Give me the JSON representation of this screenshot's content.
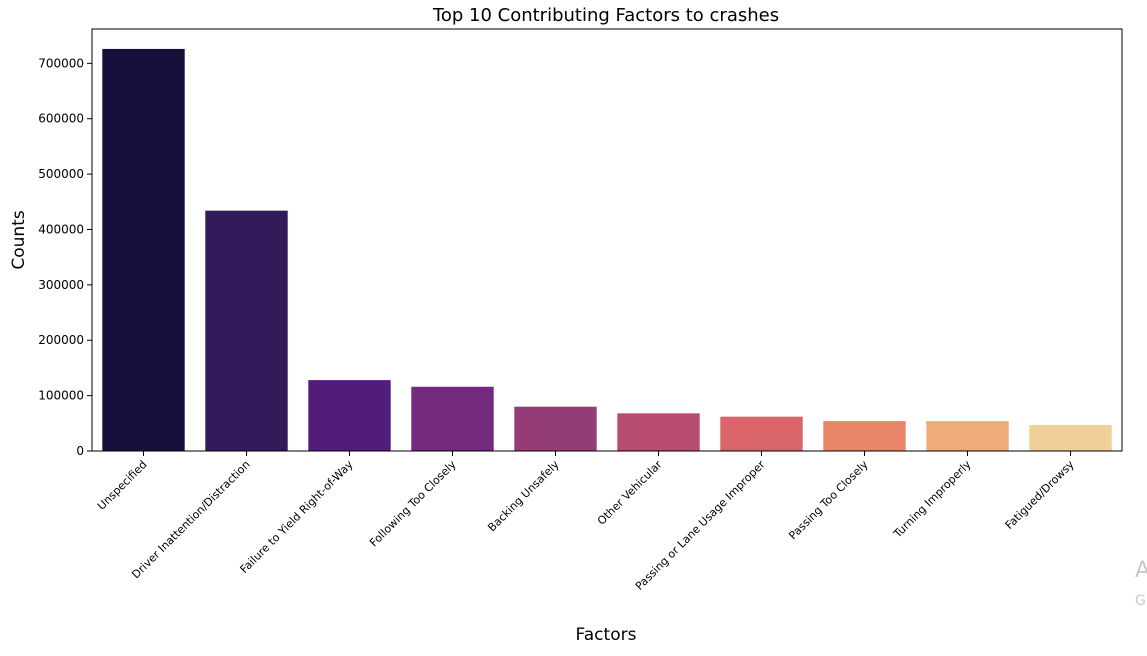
{
  "chart_data": {
    "type": "bar",
    "title": "Top 10 Contributing Factors to crashes",
    "xlabel": "Factors",
    "ylabel": "Counts",
    "categories": [
      "Unspecified",
      "Driver Inattention/Distraction",
      "Failure to Yield Right-of-Way",
      "Following Too Closely",
      "Backing Unsafely",
      "Other Vehicular",
      "Passing or Lane Usage Improper",
      "Passing Too Closely",
      "Turning Improperly",
      "Fatigued/Drowsy"
    ],
    "values": [
      726000,
      434000,
      128000,
      116000,
      80000,
      68000,
      62000,
      54000,
      54000,
      47000
    ],
    "colors": [
      "#180f3d",
      "#331a5b",
      "#521d78",
      "#732a7c",
      "#933c78",
      "#b94c71",
      "#d9656a",
      "#e9866a",
      "#eeac7c",
      "#f1cf98"
    ],
    "ylim": [
      0,
      762000
    ],
    "yticks": [
      0,
      100000,
      200000,
      300000,
      400000,
      500000,
      600000,
      700000
    ],
    "ytick_labels": [
      "0",
      "100000",
      "200000",
      "300000",
      "400000",
      "500000",
      "600000",
      "700000"
    ],
    "grid": false,
    "legend": "none"
  },
  "watermark": {
    "line1": "A",
    "line2": "G"
  }
}
